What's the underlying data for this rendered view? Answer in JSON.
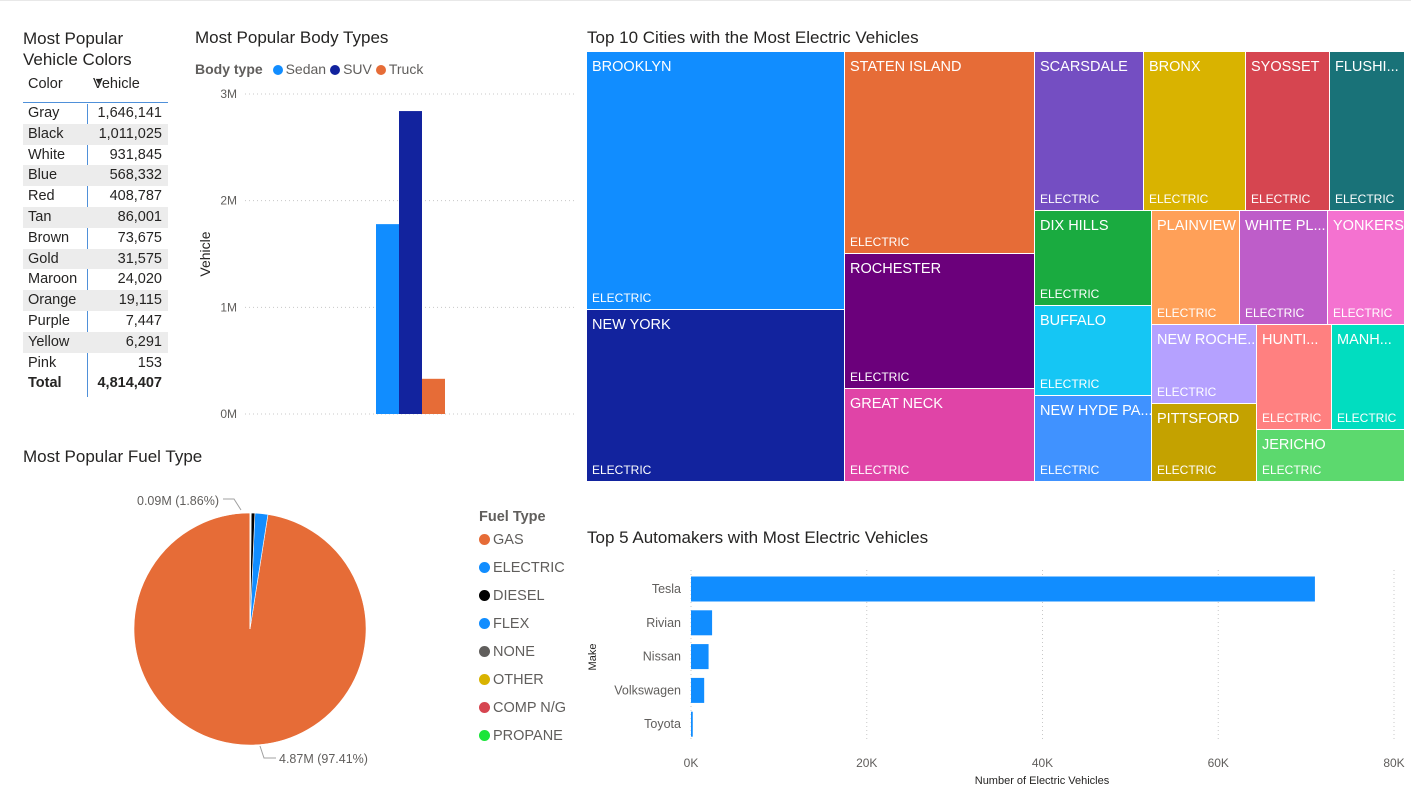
{
  "colors_table": {
    "title_line1": "Most Popular",
    "title_line2": "Vehicle Colors",
    "col1": "Color",
    "col2": "Vehicle",
    "rows": [
      {
        "c": "Gray",
        "v": "1,646,141"
      },
      {
        "c": "Black",
        "v": "1,011,025"
      },
      {
        "c": "White",
        "v": "931,845"
      },
      {
        "c": "Blue",
        "v": "568,332"
      },
      {
        "c": "Red",
        "v": "408,787"
      },
      {
        "c": "Tan",
        "v": "86,001"
      },
      {
        "c": "Brown",
        "v": "73,675"
      },
      {
        "c": "Gold",
        "v": "31,575"
      },
      {
        "c": "Maroon",
        "v": "24,020"
      },
      {
        "c": "Orange",
        "v": "19,115"
      },
      {
        "c": "Purple",
        "v": "7,447"
      },
      {
        "c": "Yellow",
        "v": "6,291"
      },
      {
        "c": "Pink",
        "v": "153"
      }
    ],
    "total_label": "Total",
    "total_value": "4,814,407"
  },
  "body_types": {
    "title": "Most Popular Body Types",
    "legend_title": "Body type",
    "colors": {
      "Sedan": "#118DFF",
      "SUV": "#12239E",
      "Truck": "#E66C37"
    }
  },
  "fuel": {
    "title": "Most Popular Fuel Type",
    "legend_title": "Fuel Type",
    "label_small": "0.09M (1.86%)",
    "label_big": "4.87M (97.41%)",
    "legend": [
      {
        "name": "GAS",
        "color": "#E66C37"
      },
      {
        "name": "ELECTRIC",
        "color": "#118DFF"
      },
      {
        "name": "DIESEL",
        "color": "#000000"
      },
      {
        "name": "FLEX",
        "color": "#118DFF"
      },
      {
        "name": "NONE",
        "color": "#605E5C"
      },
      {
        "name": "OTHER",
        "color": "#D9B300"
      },
      {
        "name": "COMP N/G",
        "color": "#D64550"
      },
      {
        "name": "PROPANE",
        "color": "#1AE53A"
      }
    ]
  },
  "cities": {
    "title": "Top 10 Cities with the Most Electric Vehicles",
    "fuel_label": "ELECTRIC",
    "names": {
      "brooklyn": "BROOKLYN",
      "newyork": "NEW YORK",
      "staten": "STATEN ISLAND",
      "rochester": "ROCHESTER",
      "greatneck": "GREAT NECK",
      "scarsdale": "SCARSDALE",
      "bronx": "BRONX",
      "syosset": "SYOSSET",
      "flushing": "FLUSHI...",
      "dixhills": "DIX HILLS",
      "buffalo": "BUFFALO",
      "newhyde": "NEW HYDE PA...",
      "plainview": "PLAINVIEW",
      "whiteplains": "WHITE PL...",
      "yonkers": "YONKERS",
      "newroche": "NEW ROCHE...",
      "hunti": "HUNTI...",
      "manh": "MANH...",
      "pittsford": "PITTSFORD",
      "jericho": "JERICHO"
    },
    "colors": {
      "brooklyn": "#118DFF",
      "newyork": "#12239E",
      "staten": "#E66C37",
      "rochester": "#6B007B",
      "greatneck": "#E044A7",
      "scarsdale": "#744EC2",
      "bronx": "#D9B300",
      "syosset": "#D64550",
      "flushing": "#197278",
      "dixhills": "#1AAB40",
      "buffalo": "#15C6F4",
      "newhyde": "#4092FF",
      "plainview": "#FFA058",
      "whiteplains": "#BE5DC9",
      "yonkers": "#F472D0",
      "newroche": "#B5A1FF",
      "hunti": "#FF8080",
      "manh": "#01DDC0",
      "pittsford": "#C4A200",
      "jericho": "#5CD96E"
    }
  },
  "automakers": {
    "title": "Top 5 Automakers with Most Electric Vehicles",
    "bar_color": "#118DFF"
  },
  "chart_data": [
    {
      "type": "bar",
      "title": "Most Popular Body Types",
      "ylabel": "Vehicle",
      "xlabel": "",
      "categories": [
        ""
      ],
      "series": [
        {
          "name": "Sedan",
          "values": [
            1780000
          ]
        },
        {
          "name": "SUV",
          "values": [
            2840000
          ]
        },
        {
          "name": "Truck",
          "values": [
            330000
          ]
        }
      ],
      "ylim": [
        0,
        3000000
      ],
      "yticks": [
        "0M",
        "1M",
        "2M",
        "3M"
      ],
      "legend_position": "top-left",
      "grid": true
    },
    {
      "type": "pie",
      "title": "Most Popular Fuel Type",
      "labels": [
        "GAS",
        "ELECTRIC",
        "DIESEL",
        "FLEX",
        "NONE",
        "OTHER",
        "COMP N/G",
        "PROPANE"
      ],
      "values": [
        4870000,
        90000,
        25000,
        3000,
        2000,
        2000,
        1000,
        500
      ],
      "percent_labels": {
        "GAS": "97.41%",
        "ELECTRIC": "1.86%"
      },
      "legend_position": "right"
    },
    {
      "type": "treemap",
      "title": "Top 10 Cities with the Most Electric Vehicles",
      "labels": [
        "BROOKLYN",
        "NEW YORK",
        "STATEN ISLAND",
        "ROCHESTER",
        "GREAT NECK",
        "SCARSDALE",
        "BRONX",
        "SYOSSET",
        "FLUSHI...",
        "DIX HILLS",
        "BUFFALO",
        "NEW HYDE PA...",
        "PLAINVIEW",
        "WHITE PL...",
        "YONKERS",
        "NEW ROCHE...",
        "HUNTI...",
        "MANH...",
        "PITTSFORD",
        "JERICHO"
      ]
    },
    {
      "type": "bar",
      "orientation": "horizontal",
      "title": "Top 5 Automakers with Most Electric Vehicles",
      "xlabel": "Number of Electric Vehicles",
      "ylabel": "Make",
      "categories": [
        "Tesla",
        "Rivian",
        "Nissan",
        "Volkswagen",
        "Toyota"
      ],
      "values": [
        71000,
        2400,
        2000,
        1500,
        200
      ],
      "xlim": [
        0,
        80000
      ],
      "xticks": [
        "0K",
        "20K",
        "40K",
        "60K",
        "80K"
      ],
      "grid": true
    }
  ]
}
